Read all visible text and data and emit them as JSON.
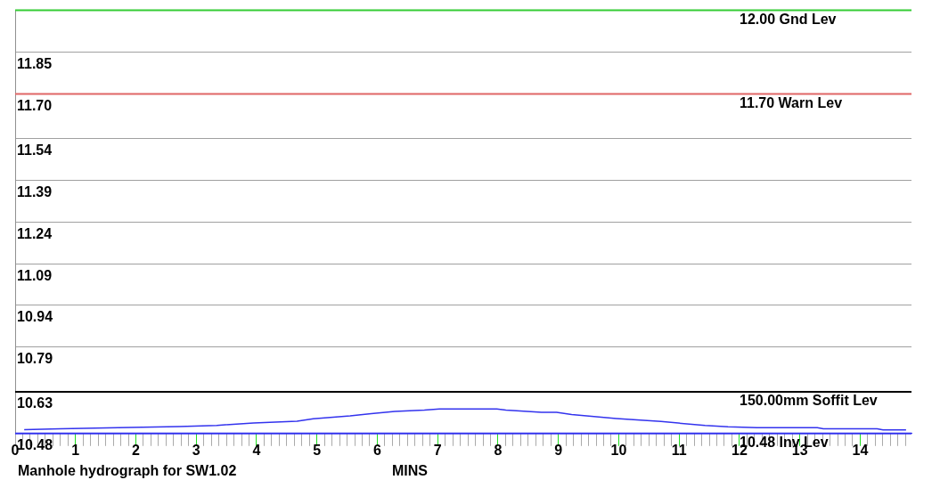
{
  "chart_data": {
    "type": "line",
    "title": "Manhole hydrograph for SW1.02",
    "xlabel": "MINS",
    "x": [
      0.15,
      0.75,
      1.71,
      2.72,
      3.34,
      3.95,
      4.67,
      4.94,
      5.55,
      5.9,
      6.29,
      6.78,
      7.03,
      7.98,
      8.13,
      8.72,
      8.97,
      9.22,
      9.96,
      10.7,
      11.43,
      11.81,
      12.29,
      13.29,
      13.39,
      14.28,
      14.38,
      14.76
    ],
    "series": [
      {
        "color": "#3333ee",
        "values": [
          10.494,
          10.497,
          10.501,
          10.505,
          10.509,
          10.518,
          10.524,
          10.533,
          10.543,
          10.551,
          10.559,
          10.564,
          10.568,
          10.568,
          10.564,
          10.556,
          10.556,
          10.548,
          10.534,
          10.523,
          10.509,
          10.504,
          10.501,
          10.501,
          10.497,
          10.497,
          10.493,
          10.493
        ]
      }
    ],
    "xlim": [
      0,
      14.85
    ],
    "xticks": [
      0,
      {
        "value": 0.125,
        "label": null
      },
      {
        "value": 0.25,
        "label": null
      },
      {
        "value": 0.375,
        "label": null
      },
      {
        "value": 0.5,
        "label": null
      },
      {
        "value": 0.625,
        "label": null
      },
      {
        "value": 0.75,
        "label": null
      },
      {
        "value": 0.875,
        "label": null
      },
      1,
      {
        "value": 1.125,
        "label": null
      },
      {
        "value": 1.25,
        "label": null
      },
      {
        "value": 1.375,
        "label": null
      },
      {
        "value": 1.5,
        "label": null
      },
      {
        "value": 1.625,
        "label": null
      },
      {
        "value": 1.75,
        "label": null
      },
      {
        "value": 1.875,
        "label": null
      },
      2,
      {
        "value": 2.125,
        "label": null
      },
      {
        "value": 2.25,
        "label": null
      },
      {
        "value": 2.375,
        "label": null
      },
      {
        "value": 2.5,
        "label": null
      },
      {
        "value": 2.625,
        "label": null
      },
      {
        "value": 2.75,
        "label": null
      },
      {
        "value": 2.875,
        "label": null
      },
      3,
      {
        "value": 3.125,
        "label": null
      },
      {
        "value": 3.25,
        "label": null
      },
      {
        "value": 3.375,
        "label": null
      },
      {
        "value": 3.5,
        "label": null
      },
      {
        "value": 3.625,
        "label": null
      },
      {
        "value": 3.75,
        "label": null
      },
      {
        "value": 3.875,
        "label": null
      },
      4,
      {
        "value": 4.125,
        "label": null
      },
      {
        "value": 4.25,
        "label": null
      },
      {
        "value": 4.375,
        "label": null
      },
      {
        "value": 4.5,
        "label": null
      },
      {
        "value": 4.625,
        "label": null
      },
      {
        "value": 4.75,
        "label": null
      },
      {
        "value": 4.875,
        "label": null
      },
      5,
      {
        "value": 5.125,
        "label": null
      },
      {
        "value": 5.25,
        "label": null
      },
      {
        "value": 5.375,
        "label": null
      },
      {
        "value": 5.5,
        "label": null
      },
      {
        "value": 5.625,
        "label": null
      },
      {
        "value": 5.75,
        "label": null
      },
      {
        "value": 5.875,
        "label": null
      },
      6,
      {
        "value": 6.125,
        "label": null
      },
      {
        "value": 6.25,
        "label": null
      },
      {
        "value": 6.375,
        "label": null
      },
      {
        "value": 6.5,
        "label": null
      },
      {
        "value": 6.625,
        "label": null
      },
      {
        "value": 6.75,
        "label": null
      },
      {
        "value": 6.875,
        "label": null
      },
      7,
      {
        "value": 7.125,
        "label": null
      },
      {
        "value": 7.25,
        "label": null
      },
      {
        "value": 7.375,
        "label": null
      },
      {
        "value": 7.5,
        "label": null
      },
      {
        "value": 7.625,
        "label": null
      },
      {
        "value": 7.75,
        "label": null
      },
      {
        "value": 7.875,
        "label": null
      },
      8,
      {
        "value": 8.125,
        "label": null
      },
      {
        "value": 8.25,
        "label": null
      },
      {
        "value": 8.375,
        "label": null
      },
      {
        "value": 8.5,
        "label": null
      },
      {
        "value": 8.625,
        "label": null
      },
      {
        "value": 8.75,
        "label": null
      },
      {
        "value": 8.875,
        "label": null
      },
      9,
      {
        "value": 9.125,
        "label": null
      },
      {
        "value": 9.25,
        "label": null
      },
      {
        "value": 9.375,
        "label": null
      },
      {
        "value": 9.5,
        "label": null
      },
      {
        "value": 9.625,
        "label": null
      },
      {
        "value": 9.75,
        "label": null
      },
      {
        "value": 9.875,
        "label": null
      },
      10,
      {
        "value": 10.125,
        "label": null
      },
      {
        "value": 10.25,
        "label": null
      },
      {
        "value": 10.375,
        "label": null
      },
      {
        "value": 10.5,
        "label": null
      },
      {
        "value": 10.625,
        "label": null
      },
      {
        "value": 10.75,
        "label": null
      },
      {
        "value": 10.875,
        "label": null
      },
      11,
      {
        "value": 11.125,
        "label": null
      },
      {
        "value": 11.25,
        "label": null
      },
      {
        "value": 11.375,
        "label": null
      },
      {
        "value": 11.5,
        "label": null
      },
      {
        "value": 11.625,
        "label": null
      },
      {
        "value": 11.75,
        "label": null
      },
      {
        "value": 11.875,
        "label": null
      },
      12,
      {
        "value": 12.125,
        "label": null
      },
      {
        "value": 12.25,
        "label": null
      },
      {
        "value": 12.375,
        "label": null
      },
      {
        "value": 12.5,
        "label": null
      },
      {
        "value": 12.625,
        "label": null
      },
      {
        "value": 12.75,
        "label": null
      },
      {
        "value": 12.875,
        "label": null
      },
      13,
      {
        "value": 13.125,
        "label": null
      },
      {
        "value": 13.25,
        "label": null
      },
      {
        "value": 13.375,
        "label": null
      },
      {
        "value": 13.5,
        "label": null
      },
      {
        "value": 13.625,
        "label": null
      },
      {
        "value": 13.75,
        "label": null
      },
      {
        "value": 13.875,
        "label": null
      },
      14,
      {
        "value": 14.125,
        "label": null
      },
      {
        "value": 14.25,
        "label": null
      },
      {
        "value": 14.375,
        "label": null
      },
      {
        "value": 14.5,
        "label": null
      },
      {
        "value": 14.625,
        "label": null
      },
      {
        "value": 14.75,
        "label": null
      }
    ],
    "ylim": [
      10.48,
      12.0
    ],
    "yticks": [
      10.48,
      10.63,
      10.79,
      10.94,
      11.09,
      11.24,
      11.39,
      11.54,
      {
        "value": 11.7,
        "label": "11.70"
      },
      11.85
    ],
    "ref_lines": [
      {
        "axis": "y",
        "value": 12.0,
        "label": "12.00 Gnd Lev",
        "color": "#33cc33"
      },
      {
        "axis": "y",
        "value": 11.7,
        "label": "11.70 Warn Lev",
        "color": "#e06666"
      },
      {
        "axis": "y",
        "value": 10.63,
        "label": "150.00mm Soffit Lev",
        "color": "#000000"
      },
      {
        "axis": "y",
        "value": 10.48,
        "label": "10.48 Inv Lev",
        "color": "#3333ee"
      }
    ],
    "grid": "y",
    "legend": false,
    "marker": "none",
    "line_style": "solid"
  }
}
